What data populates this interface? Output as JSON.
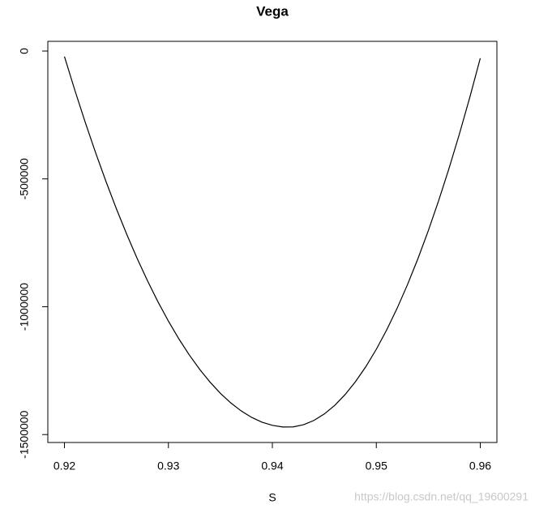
{
  "chart_data": {
    "type": "line",
    "title": "Vega",
    "x_label": "S",
    "x": [
      0.92,
      0.921,
      0.922,
      0.923,
      0.924,
      0.925,
      0.926,
      0.927,
      0.928,
      0.929,
      0.93,
      0.931,
      0.932,
      0.933,
      0.934,
      0.935,
      0.936,
      0.937,
      0.938,
      0.939,
      0.94,
      0.941,
      0.942,
      0.943,
      0.944,
      0.945,
      0.946,
      0.947,
      0.948,
      0.949,
      0.95,
      0.951,
      0.952,
      0.953,
      0.954,
      0.955,
      0.956,
      0.957,
      0.958,
      0.959,
      0.96
    ],
    "series": [
      {
        "color": "#000000",
        "values": [
          -21600,
          -153400,
          -278800,
          -397900,
          -510700,
          -617400,
          -717700,
          -811800,
          -899500,
          -981200,
          -1056300,
          -1125300,
          -1188000,
          -1244500,
          -1294600,
          -1338500,
          -1376100,
          -1407500,
          -1432600,
          -1451400,
          -1463900,
          -1470300,
          -1470000,
          -1461600,
          -1444700,
          -1419400,
          -1385700,
          -1343500,
          -1292900,
          -1233900,
          -1166500,
          -1090500,
          -1006200,
          -913500,
          -812300,
          -702700,
          -584700,
          -458100,
          -323300,
          -180100,
          -28100
        ]
      }
    ],
    "xlim": [
      0.9184,
      0.9616
    ],
    "xticks": [
      0.92,
      0.93,
      0.94,
      0.95,
      0.96
    ],
    "ylim": [
      -1531000,
      38000
    ],
    "yticks": [
      0,
      -500000,
      -1000000,
      -1500000
    ],
    "grid": false,
    "watermark": "https://blog.csdn.net/qq_19600291"
  }
}
